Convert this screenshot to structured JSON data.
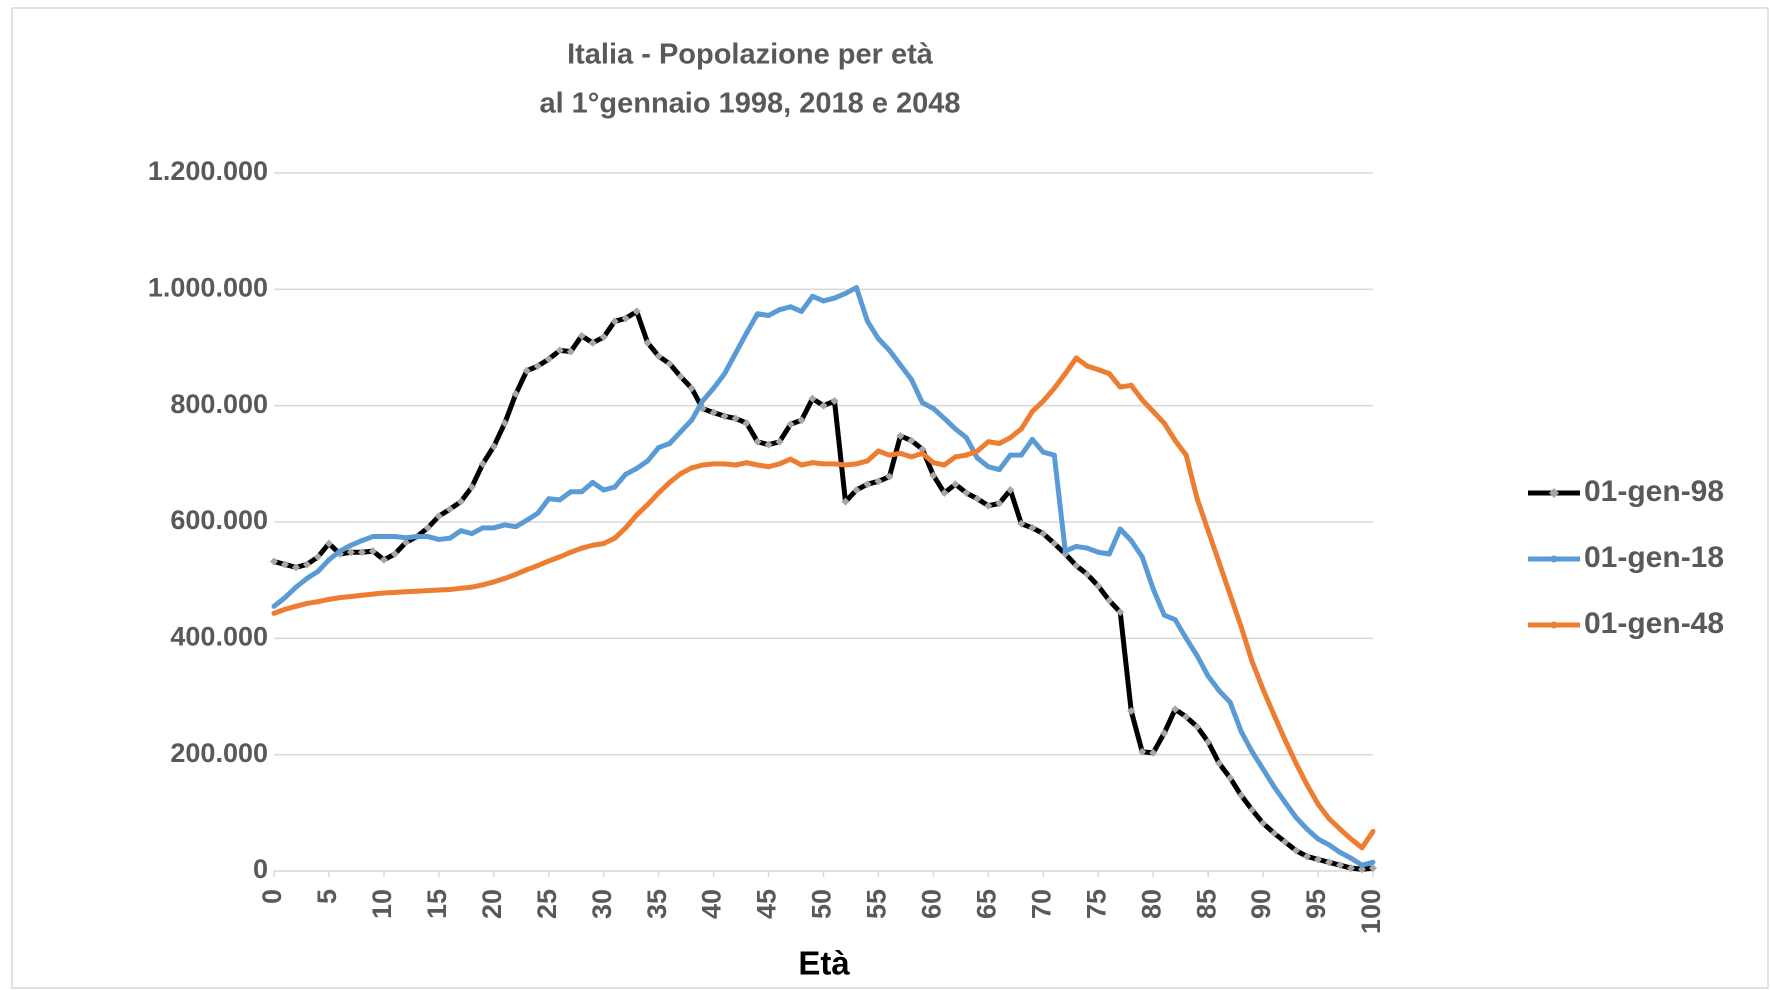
{
  "chart_data": {
    "type": "line",
    "title": [
      "Italia - Popolazione per età",
      "al 1°gennaio 1998, 2018 e 2048"
    ],
    "x_label": "Età",
    "x": [
      0,
      1,
      2,
      3,
      4,
      5,
      6,
      7,
      8,
      9,
      10,
      11,
      12,
      13,
      14,
      15,
      16,
      17,
      18,
      19,
      20,
      21,
      22,
      23,
      24,
      25,
      26,
      27,
      28,
      29,
      30,
      31,
      32,
      33,
      34,
      35,
      36,
      37,
      38,
      39,
      40,
      41,
      42,
      43,
      44,
      45,
      46,
      47,
      48,
      49,
      50,
      51,
      52,
      53,
      54,
      55,
      56,
      57,
      58,
      59,
      60,
      61,
      62,
      63,
      64,
      65,
      66,
      67,
      68,
      69,
      70,
      71,
      72,
      73,
      74,
      75,
      76,
      77,
      78,
      79,
      80,
      81,
      82,
      83,
      84,
      85,
      86,
      87,
      88,
      89,
      90,
      91,
      92,
      93,
      94,
      95,
      96,
      97,
      98,
      99,
      100
    ],
    "xlim": [
      0,
      100
    ],
    "xticks": [
      0,
      5,
      10,
      15,
      20,
      25,
      30,
      35,
      40,
      45,
      50,
      55,
      60,
      65,
      70,
      75,
      80,
      85,
      90,
      95,
      100
    ],
    "ylim": [
      0,
      1200000
    ],
    "yticks": [
      0,
      {
        "value": 200000,
        "label": "200.000"
      },
      {
        "value": 400000,
        "label": "400.000"
      },
      {
        "value": 600000,
        "label": "600.000"
      },
      {
        "value": 800000,
        "label": "800.000"
      },
      {
        "value": 1000000,
        "label": "1.000.000"
      },
      {
        "value": 1200000,
        "label": "1.200.000"
      }
    ],
    "grid": true,
    "legend": "right",
    "series": [
      {
        "name": "01-gen-98",
        "color": "#000000",
        "marker": "diamond",
        "marker_color": "#a6a6a6",
        "values": [
          532000,
          527000,
          522000,
          527000,
          540000,
          563000,
          545000,
          548000,
          548000,
          550000,
          535000,
          545000,
          565000,
          575000,
          590000,
          610000,
          622000,
          635000,
          660000,
          700000,
          730000,
          770000,
          820000,
          860000,
          868000,
          880000,
          895000,
          893000,
          920000,
          908000,
          918000,
          945000,
          950000,
          962000,
          908000,
          885000,
          872000,
          850000,
          830000,
          795000,
          788000,
          782000,
          778000,
          770000,
          738000,
          733000,
          738000,
          768000,
          775000,
          812000,
          800000,
          808000,
          635000,
          655000,
          665000,
          670000,
          678000,
          748000,
          740000,
          725000,
          680000,
          650000,
          665000,
          650000,
          640000,
          628000,
          632000,
          655000,
          597000,
          590000,
          580000,
          563000,
          545000,
          525000,
          510000,
          490000,
          465000,
          445000,
          275000,
          205000,
          203000,
          237000,
          278000,
          265000,
          248000,
          222000,
          185000,
          160000,
          130000,
          105000,
          82000,
          65000,
          50000,
          35000,
          25000,
          20000,
          15000,
          10000,
          5000,
          3000,
          5000
        ]
      },
      {
        "name": "01-gen-18",
        "color": "#5b9bd5",
        "marker": "circle",
        "marker_color": "#5b9bd5",
        "values": [
          455000,
          470000,
          488000,
          503000,
          515000,
          535000,
          550000,
          560000,
          568000,
          575000,
          575000,
          575000,
          573000,
          575000,
          575000,
          570000,
          572000,
          585000,
          580000,
          590000,
          590000,
          595000,
          592000,
          603000,
          615000,
          640000,
          638000,
          652000,
          652000,
          668000,
          655000,
          660000,
          682000,
          692000,
          705000,
          728000,
          735000,
          755000,
          775000,
          808000,
          830000,
          855000,
          890000,
          925000,
          958000,
          955000,
          965000,
          970000,
          962000,
          988000,
          980000,
          985000,
          993000,
          1003000,
          945000,
          915000,
          895000,
          870000,
          845000,
          805000,
          795000,
          778000,
          760000,
          745000,
          710000,
          695000,
          690000,
          715000,
          715000,
          742000,
          720000,
          715000,
          550000,
          558000,
          555000,
          548000,
          545000,
          588000,
          568000,
          540000,
          485000,
          440000,
          432000,
          400000,
          370000,
          335000,
          310000,
          290000,
          240000,
          205000,
          175000,
          145000,
          118000,
          92000,
          72000,
          55000,
          45000,
          32000,
          22000,
          10000,
          15000
        ]
      },
      {
        "name": "01-gen-48",
        "color": "#ed7d31",
        "marker": "circle",
        "marker_color": "#ed7d31",
        "values": [
          443000,
          450000,
          455000,
          460000,
          463000,
          467000,
          470000,
          472000,
          474000,
          476000,
          478000,
          479000,
          480000,
          481000,
          482000,
          483000,
          484000,
          486000,
          488000,
          492000,
          497000,
          503000,
          510000,
          518000,
          525000,
          533000,
          540000,
          548000,
          555000,
          560000,
          563000,
          572000,
          590000,
          612000,
          630000,
          650000,
          668000,
          683000,
          693000,
          698000,
          700000,
          700000,
          698000,
          702000,
          698000,
          695000,
          700000,
          708000,
          698000,
          702000,
          700000,
          700000,
          698000,
          700000,
          705000,
          722000,
          715000,
          718000,
          712000,
          718000,
          702000,
          698000,
          712000,
          715000,
          722000,
          738000,
          735000,
          745000,
          760000,
          790000,
          808000,
          830000,
          855000,
          882000,
          868000,
          862000,
          855000,
          832000,
          835000,
          810000,
          790000,
          770000,
          740000,
          715000,
          640000,
          585000,
          530000,
          475000,
          420000,
          360000,
          312000,
          268000,
          225000,
          185000,
          148000,
          115000,
          90000,
          72000,
          55000,
          40000,
          68000
        ]
      }
    ]
  }
}
